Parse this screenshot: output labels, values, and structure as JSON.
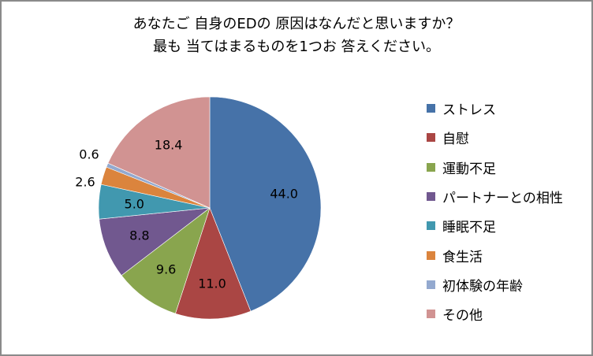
{
  "title": {
    "line1": "あなたご 自身のEDの 原因はなんだと思いますか？",
    "line2": "最も 当てはまるものを1つお 答えください。"
  },
  "legend": [
    {
      "label": "ストレス",
      "color": "#4672a8"
    },
    {
      "label": "自慰",
      "color": "#aa4644"
    },
    {
      "label": "運動不足",
      "color": "#89a54e"
    },
    {
      "label": "パートナーとの相性",
      "color": "#71588f"
    },
    {
      "label": "睡眠不足",
      "color": "#4198af"
    },
    {
      "label": "食生活",
      "color": "#db843d"
    },
    {
      "label": "初体験の年齢",
      "color": "#93a9cf"
    },
    {
      "label": "その他",
      "color": "#d19392"
    }
  ],
  "data_labels": [
    "44.0",
    "11.0",
    "9.6",
    "8.8",
    "5.0",
    "2.6",
    "0.6",
    "18.4"
  ],
  "chart_data": {
    "type": "pie",
    "title": "あなたご 自身のEDの 原因はなんだと思いますか？ 最も 当てはまるものを1つお 答えください。",
    "categories": [
      "ストレス",
      "自慰",
      "運動不足",
      "パートナーとの相性",
      "睡眠不足",
      "食生活",
      "初体験の年齢",
      "その他"
    ],
    "values": [
      44.0,
      11.0,
      9.6,
      8.8,
      5.0,
      2.6,
      0.6,
      18.4
    ],
    "colors": [
      "#4672a8",
      "#aa4644",
      "#89a54e",
      "#71588f",
      "#4198af",
      "#db843d",
      "#93a9cf",
      "#d19392"
    ],
    "start_angle": "12 o'clock, clockwise",
    "legend_position": "right",
    "data_labels": true
  }
}
